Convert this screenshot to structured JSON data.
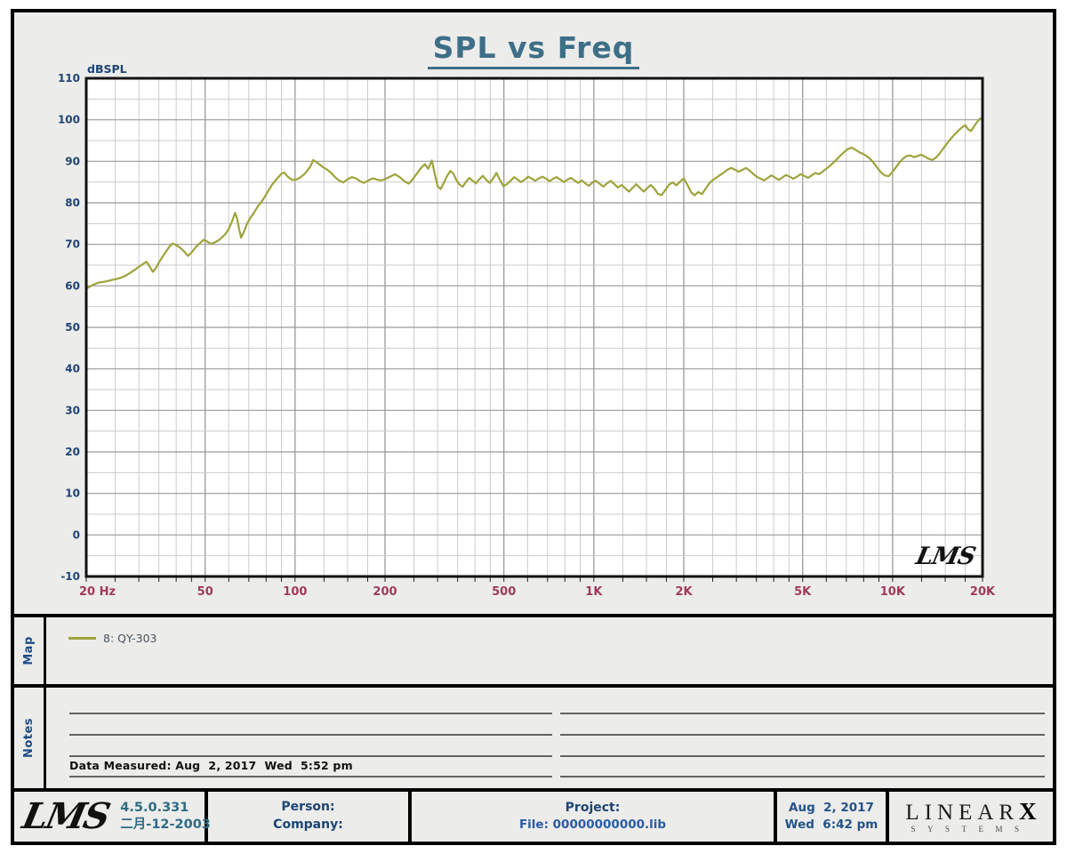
{
  "title": "SPL vs Freq",
  "watermark": "LMS",
  "colors": {
    "background": "#ececea",
    "plot_background": "#ffffff",
    "curve": "#9da43c",
    "grid_minor": "#cccccc",
    "grid_major": "#999999",
    "plot_frame": "#111111",
    "title_color": "#3e6f88",
    "y_label_color": "#1e4476",
    "x_label_color": "#a03a5c",
    "section_label_color": "#1d4a84"
  },
  "chart_data": {
    "type": "line",
    "title": "SPL vs Freq",
    "ylabel": "dBSPL",
    "x_scale": "log",
    "xlim": [
      20,
      20000
    ],
    "ylim": [
      -10,
      110
    ],
    "y_tick_step_major": 10,
    "y_tick_step_minor": 5,
    "grid": true,
    "legend_position": "map-section",
    "x_ticks": [
      [
        20,
        "20 Hz"
      ],
      [
        50,
        "50"
      ],
      [
        100,
        "100"
      ],
      [
        200,
        "200"
      ],
      [
        500,
        "500"
      ],
      [
        1000,
        "1K"
      ],
      [
        2000,
        "2K"
      ],
      [
        5000,
        "5K"
      ],
      [
        10000,
        "10K"
      ],
      [
        20000,
        "20K"
      ]
    ],
    "series": [
      {
        "name": "8: QY-303",
        "color": "#9da43c",
        "points": [
          [
            20,
            59.3
          ],
          [
            21,
            60.2
          ],
          [
            22,
            60.8
          ],
          [
            23,
            61.0
          ],
          [
            24,
            61.3
          ],
          [
            25,
            61.6
          ],
          [
            26,
            61.9
          ],
          [
            27,
            62.4
          ],
          [
            28,
            63.1
          ],
          [
            29,
            63.8
          ],
          [
            30,
            64.6
          ],
          [
            31,
            65.3
          ],
          [
            31.8,
            65.8
          ],
          [
            32.6,
            64.7
          ],
          [
            33.4,
            63.4
          ],
          [
            34.2,
            64.3
          ],
          [
            35,
            65.6
          ],
          [
            36,
            67.0
          ],
          [
            37,
            68.3
          ],
          [
            38,
            69.5
          ],
          [
            39,
            70.2
          ],
          [
            40,
            69.8
          ],
          [
            41.2,
            69.2
          ],
          [
            42.5,
            68.3
          ],
          [
            43.8,
            67.2
          ],
          [
            45,
            68.0
          ],
          [
            46.5,
            69.3
          ],
          [
            48,
            70.3
          ],
          [
            49.5,
            71.1
          ],
          [
            51,
            70.6
          ],
          [
            52.5,
            70.1
          ],
          [
            54,
            70.5
          ],
          [
            55.5,
            71.0
          ],
          [
            57,
            71.7
          ],
          [
            58.5,
            72.5
          ],
          [
            60,
            73.7
          ],
          [
            61.5,
            75.5
          ],
          [
            63,
            77.6
          ],
          [
            64,
            76.2
          ],
          [
            65,
            73.6
          ],
          [
            66,
            71.6
          ],
          [
            67.5,
            73.1
          ],
          [
            69,
            74.9
          ],
          [
            71,
            76.5
          ],
          [
            73,
            77.7
          ],
          [
            75,
            79.1
          ],
          [
            78,
            80.7
          ],
          [
            81,
            82.7
          ],
          [
            84,
            84.5
          ],
          [
            87,
            85.8
          ],
          [
            90,
            87.0
          ],
          [
            92,
            87.3
          ],
          [
            94,
            86.5
          ],
          [
            96,
            85.9
          ],
          [
            98,
            85.5
          ],
          [
            101,
            85.6
          ],
          [
            104,
            86.1
          ],
          [
            107,
            86.8
          ],
          [
            110,
            87.8
          ],
          [
            113,
            89.0
          ],
          [
            115,
            90.3
          ],
          [
            118,
            89.8
          ],
          [
            121,
            89.2
          ],
          [
            124,
            88.6
          ],
          [
            128,
            88.0
          ],
          [
            132,
            87.2
          ],
          [
            136,
            86.2
          ],
          [
            140,
            85.4
          ],
          [
            145,
            84.9
          ],
          [
            150,
            85.7
          ],
          [
            155,
            86.2
          ],
          [
            160,
            85.9
          ],
          [
            165,
            85.2
          ],
          [
            170,
            84.8
          ],
          [
            176,
            85.4
          ],
          [
            182,
            85.9
          ],
          [
            188,
            85.6
          ],
          [
            194,
            85.4
          ],
          [
            200,
            85.7
          ],
          [
            208,
            86.3
          ],
          [
            216,
            86.9
          ],
          [
            224,
            86.2
          ],
          [
            232,
            85.2
          ],
          [
            240,
            84.6
          ],
          [
            248,
            85.7
          ],
          [
            256,
            87.1
          ],
          [
            264,
            88.4
          ],
          [
            272,
            89.3
          ],
          [
            279,
            88.2
          ],
          [
            287,
            90.2
          ],
          [
            293,
            87.2
          ],
          [
            300,
            84.0
          ],
          [
            307,
            83.3
          ],
          [
            315,
            84.9
          ],
          [
            323,
            86.5
          ],
          [
            331,
            87.7
          ],
          [
            339,
            87.0
          ],
          [
            347,
            85.4
          ],
          [
            355,
            84.4
          ],
          [
            364,
            83.9
          ],
          [
            373,
            85.0
          ],
          [
            383,
            86.0
          ],
          [
            393,
            85.3
          ],
          [
            403,
            84.7
          ],
          [
            414,
            85.7
          ],
          [
            425,
            86.5
          ],
          [
            436,
            85.6
          ],
          [
            448,
            84.8
          ],
          [
            460,
            85.8
          ],
          [
            472,
            87.2
          ],
          [
            485,
            85.5
          ],
          [
            498,
            84.0
          ],
          [
            512,
            84.5
          ],
          [
            526,
            85.3
          ],
          [
            541,
            86.2
          ],
          [
            556,
            85.6
          ],
          [
            571,
            85.0
          ],
          [
            587,
            85.6
          ],
          [
            603,
            86.3
          ],
          [
            620,
            85.8
          ],
          [
            637,
            85.3
          ],
          [
            655,
            85.9
          ],
          [
            673,
            86.3
          ],
          [
            692,
            85.8
          ],
          [
            711,
            85.2
          ],
          [
            731,
            85.8
          ],
          [
            751,
            86.2
          ],
          [
            772,
            85.6
          ],
          [
            794,
            85.0
          ],
          [
            816,
            85.6
          ],
          [
            839,
            86.0
          ],
          [
            862,
            85.4
          ],
          [
            886,
            84.8
          ],
          [
            911,
            85.4
          ],
          [
            936,
            84.7
          ],
          [
            962,
            84.1
          ],
          [
            989,
            84.9
          ],
          [
            1017,
            85.3
          ],
          [
            1046,
            84.6
          ],
          [
            1076,
            83.9
          ],
          [
            1107,
            84.7
          ],
          [
            1139,
            85.3
          ],
          [
            1171,
            84.5
          ],
          [
            1204,
            83.7
          ],
          [
            1239,
            84.3
          ],
          [
            1274,
            83.5
          ],
          [
            1310,
            82.7
          ],
          [
            1348,
            83.6
          ],
          [
            1386,
            84.5
          ],
          [
            1426,
            83.6
          ],
          [
            1466,
            82.7
          ],
          [
            1508,
            83.5
          ],
          [
            1551,
            84.3
          ],
          [
            1596,
            83.4
          ],
          [
            1641,
            82.1
          ],
          [
            1688,
            81.9
          ],
          [
            1736,
            83.1
          ],
          [
            1786,
            84.4
          ],
          [
            1837,
            84.9
          ],
          [
            1889,
            84.2
          ],
          [
            1943,
            85.1
          ],
          [
            1999,
            85.9
          ],
          [
            2056,
            84.4
          ],
          [
            2114,
            82.6
          ],
          [
            2175,
            81.8
          ],
          [
            2237,
            82.6
          ],
          [
            2301,
            82.1
          ],
          [
            2367,
            83.4
          ],
          [
            2434,
            84.7
          ],
          [
            2504,
            85.5
          ],
          [
            2575,
            86.1
          ],
          [
            2649,
            86.7
          ],
          [
            2724,
            87.3
          ],
          [
            2802,
            88.0
          ],
          [
            2882,
            88.4
          ],
          [
            2965,
            88.0
          ],
          [
            3049,
            87.5
          ],
          [
            3136,
            87.9
          ],
          [
            3226,
            88.4
          ],
          [
            3318,
            87.8
          ],
          [
            3413,
            87.0
          ],
          [
            3511,
            86.3
          ],
          [
            3611,
            85.8
          ],
          [
            3714,
            85.4
          ],
          [
            3820,
            86.0
          ],
          [
            3929,
            86.6
          ],
          [
            4041,
            86.1
          ],
          [
            4157,
            85.5
          ],
          [
            4276,
            86.1
          ],
          [
            4398,
            86.7
          ],
          [
            4524,
            86.3
          ],
          [
            4653,
            85.8
          ],
          [
            4786,
            86.3
          ],
          [
            4923,
            86.9
          ],
          [
            5064,
            86.5
          ],
          [
            5209,
            86.0
          ],
          [
            5358,
            86.6
          ],
          [
            5511,
            87.2
          ],
          [
            5668,
            86.9
          ],
          [
            5830,
            87.5
          ],
          [
            5997,
            88.2
          ],
          [
            6168,
            88.9
          ],
          [
            6345,
            89.7
          ],
          [
            6526,
            90.6
          ],
          [
            6713,
            91.5
          ],
          [
            6905,
            92.3
          ],
          [
            7102,
            93.0
          ],
          [
            7305,
            93.3
          ],
          [
            7514,
            92.8
          ],
          [
            7729,
            92.2
          ],
          [
            7950,
            91.8
          ],
          [
            8177,
            91.3
          ],
          [
            8411,
            90.6
          ],
          [
            8652,
            89.6
          ],
          [
            8899,
            88.4
          ],
          [
            9154,
            87.3
          ],
          [
            9416,
            86.6
          ],
          [
            9685,
            86.4
          ],
          [
            9962,
            87.3
          ],
          [
            10247,
            88.5
          ],
          [
            10540,
            89.7
          ],
          [
            10842,
            90.7
          ],
          [
            11152,
            91.3
          ],
          [
            11471,
            91.4
          ],
          [
            11799,
            91.0
          ],
          [
            12137,
            91.3
          ],
          [
            12484,
            91.6
          ],
          [
            12841,
            91.1
          ],
          [
            13209,
            90.6
          ],
          [
            13587,
            90.3
          ],
          [
            13975,
            90.9
          ],
          [
            14375,
            91.9
          ],
          [
            14786,
            93.1
          ],
          [
            15209,
            94.3
          ],
          [
            15644,
            95.4
          ],
          [
            16092,
            96.4
          ],
          [
            16552,
            97.3
          ],
          [
            17025,
            98.1
          ],
          [
            17512,
            98.7
          ],
          [
            17900,
            97.7
          ],
          [
            18300,
            97.3
          ],
          [
            18700,
            98.3
          ],
          [
            19100,
            99.3
          ],
          [
            19500,
            100.1
          ],
          [
            19800,
            100.4
          ],
          [
            20000,
            99.6
          ]
        ]
      }
    ]
  },
  "map_section": {
    "label": "Map",
    "legend": {
      "name": "8: QY-303",
      "color": "#9da43c"
    }
  },
  "notes_section": {
    "label": "Notes",
    "data_measured": "Data Measured: Aug  2, 2017  Wed  5:52 pm"
  },
  "footer": {
    "lms_logo": "LMS",
    "version": "4.5.0.331",
    "version_date": "二月-12-2003",
    "person_label": "Person:",
    "company_label": "Company:",
    "project_label": "Project:",
    "file_label": "File: 00000000000.lib",
    "date": "Aug  2, 2017",
    "time": "Wed  6:42 pm",
    "brand_top": "LINEAR",
    "brand_x": "X",
    "brand_sub": "SYSTEMS"
  }
}
